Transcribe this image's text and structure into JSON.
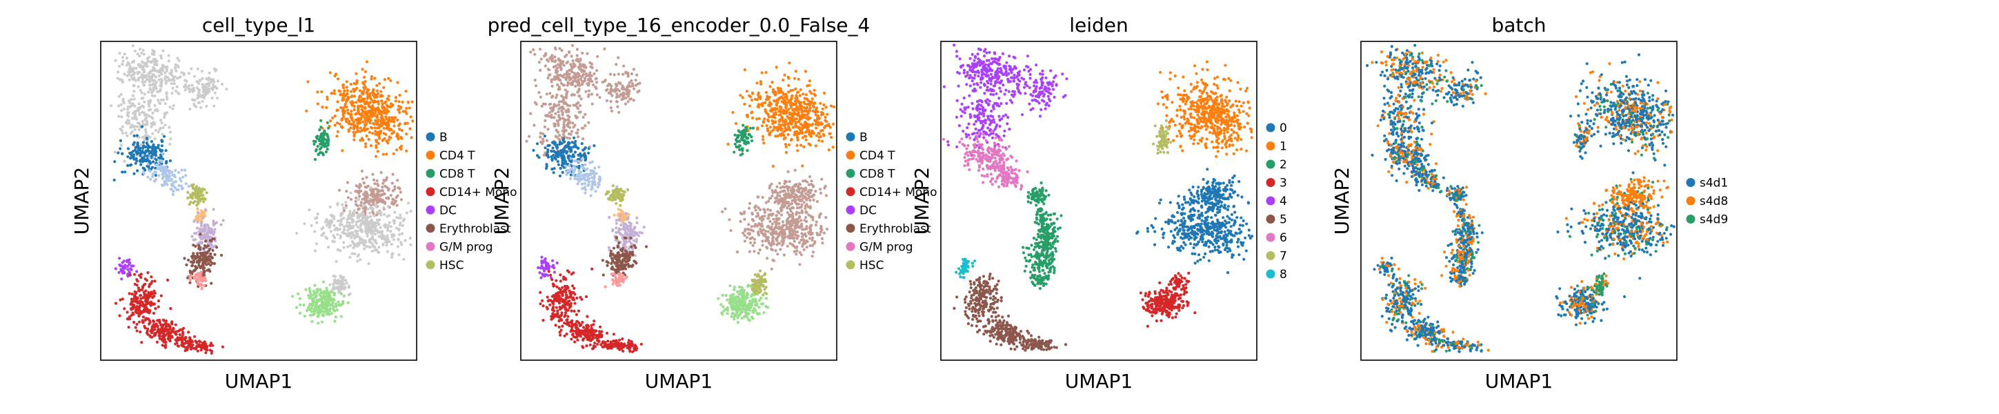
{
  "chart_data": [
    {
      "type": "scatter",
      "title": "cell_type_l1",
      "xlabel": "UMAP1",
      "ylabel": "UMAP2",
      "grid": false,
      "legend_position": "right",
      "legend": [
        {
          "label": "B",
          "color": "#1f77b4"
        },
        {
          "label": "CD4 T",
          "color": "#ff7f0e"
        },
        {
          "label": "CD8 T",
          "color": "#279e68"
        },
        {
          "label": "CD14+ Mono",
          "color": "#d62728"
        },
        {
          "label": "DC",
          "color": "#aa40fc"
        },
        {
          "label": "Erythroblast",
          "color": "#8c564b"
        },
        {
          "label": "G/M prog",
          "color": "#e377c2"
        },
        {
          "label": "HSC",
          "color": "#b5bd61"
        }
      ],
      "colors": {
        "top_left_arm": "#cccccc",
        "left_mid": "#1f77b4",
        "left_mid_light": "#aec7e8",
        "hsc_blob": "#b5bd61",
        "connector": "#ffbb78",
        "dc_small": "#c5b0d5",
        "lower_arm": "#8c564b",
        "lower_arm_tip": "#ff9896",
        "right_top": "#ff7f0e",
        "right_small": "#279e68",
        "right_mid": "#cccccc",
        "right_mid_accent": "#c49c94",
        "bottom_left_tail": "#d62728",
        "bottom_left_tip": "#aa40fc",
        "bottom_right": "#98df8a",
        "bottom_right_top": "#cccccc"
      }
    },
    {
      "type": "scatter",
      "title": "pred_cell_type_16_encoder_0.0_False_4",
      "xlabel": "UMAP1",
      "ylabel": "UMAP2",
      "grid": false,
      "legend_position": "right",
      "legend": [
        {
          "label": "B",
          "color": "#1f77b4"
        },
        {
          "label": "CD4 T",
          "color": "#ff7f0e"
        },
        {
          "label": "CD8 T",
          "color": "#279e68"
        },
        {
          "label": "CD14+ Mono",
          "color": "#d62728"
        },
        {
          "label": "DC",
          "color": "#aa40fc"
        },
        {
          "label": "Erythroblast",
          "color": "#8c564b"
        },
        {
          "label": "G/M prog",
          "color": "#e377c2"
        },
        {
          "label": "HSC",
          "color": "#b5bd61"
        }
      ],
      "colors": {
        "top_left_arm": "#c49c94",
        "left_mid": "#1f77b4",
        "left_mid_light": "#aec7e8",
        "hsc_blob": "#b5bd61",
        "connector": "#ffbb78",
        "dc_small": "#c5b0d5",
        "lower_arm": "#8c564b",
        "lower_arm_tip": "#ff9896",
        "right_top": "#ff7f0e",
        "right_small": "#279e68",
        "right_mid": "#c49c94",
        "right_mid_accent": "#c49c94",
        "bottom_left_tail": "#d62728",
        "bottom_left_tip": "#aa40fc",
        "bottom_right": "#98df8a",
        "bottom_right_top": "#b5bd61"
      }
    },
    {
      "type": "scatter",
      "title": "leiden",
      "xlabel": "UMAP1",
      "ylabel": "UMAP2",
      "grid": false,
      "legend_position": "right",
      "legend": [
        {
          "label": "0",
          "color": "#1f77b4"
        },
        {
          "label": "1",
          "color": "#ff7f0e"
        },
        {
          "label": "2",
          "color": "#279e68"
        },
        {
          "label": "3",
          "color": "#d62728"
        },
        {
          "label": "4",
          "color": "#aa40fc"
        },
        {
          "label": "5",
          "color": "#8c564b"
        },
        {
          "label": "6",
          "color": "#e377c2"
        },
        {
          "label": "7",
          "color": "#b5bd61"
        },
        {
          "label": "8",
          "color": "#17becf"
        }
      ],
      "colors": {
        "top_left_arm": "#aa40fc",
        "left_mid": "#e377c2",
        "left_mid_light": "#e377c2",
        "hsc_blob": "#279e68",
        "connector": "#279e68",
        "dc_small": "#279e68",
        "lower_arm": "#279e68",
        "lower_arm_tip": "#279e68",
        "right_top": "#ff7f0e",
        "right_small": "#b5bd61",
        "right_mid": "#1f77b4",
        "right_mid_accent": "#1f77b4",
        "bottom_left_tail": "#8c564b",
        "bottom_left_tip": "#17becf",
        "bottom_right": "#d62728",
        "bottom_right_top": "#d62728"
      }
    },
    {
      "type": "scatter",
      "title": "batch",
      "xlabel": "UMAP1",
      "ylabel": "UMAP2",
      "grid": false,
      "legend_position": "right",
      "legend": [
        {
          "label": "s4d1",
          "color": "#1f77b4"
        },
        {
          "label": "s4d8",
          "color": "#ff7f0e"
        },
        {
          "label": "s4d9",
          "color": "#279e68"
        }
      ],
      "colors": {
        "top_left_arm": "#1f77b4",
        "left_mid": "#1f77b4",
        "left_mid_light": "#1f77b4",
        "hsc_blob": "#1f77b4",
        "connector": "#1f77b4",
        "dc_small": "#1f77b4",
        "lower_arm": "#1f77b4",
        "lower_arm_tip": "#1f77b4",
        "right_top": "#1f77b4",
        "right_small": "#1f77b4",
        "right_mid": "#1f77b4",
        "right_mid_accent": "#ff7f0e",
        "bottom_left_tail": "#1f77b4",
        "bottom_left_tip": "#1f77b4",
        "bottom_right": "#1f77b4",
        "bottom_right_top": "#279e68"
      },
      "mix": {
        "#ff7f0e": 0.28,
        "#279e68": 0.12
      }
    }
  ]
}
